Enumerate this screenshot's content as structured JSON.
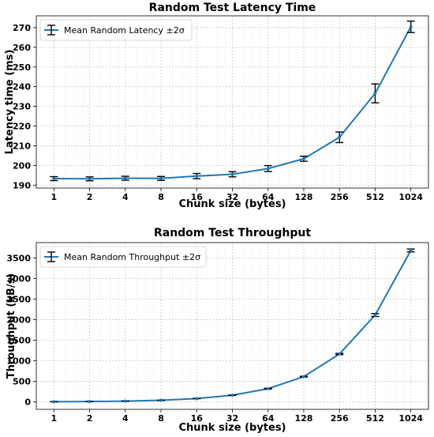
{
  "chart_data": [
    {
      "type": "line",
      "title": "Random Test Latency Time",
      "xlabel": "Chunk size (bytes)",
      "ylabel": "Latency time (ms)",
      "x_scale": "log2",
      "x": [
        1,
        2,
        4,
        8,
        16,
        32,
        64,
        128,
        256,
        512,
        1024
      ],
      "x_tick_labels": [
        "1",
        "2",
        "4",
        "8",
        "16",
        "32",
        "64",
        "128",
        "256",
        "512",
        "1024"
      ],
      "ylim": [
        188.5,
        276
      ],
      "y_ticks": [
        190,
        200,
        210,
        220,
        230,
        240,
        250,
        260,
        270
      ],
      "grid": true,
      "legend_position": "top-left",
      "color": "#1f77b4",
      "series": [
        {
          "name": "Mean Random Latency ±2σ",
          "values": [
            193.3,
            193.2,
            193.5,
            193.4,
            194.6,
            195.5,
            198.4,
            203.4,
            214.3,
            236.6,
            270.4
          ],
          "error_2sigma": [
            1.0,
            1.0,
            1.0,
            1.0,
            1.3,
            1.3,
            1.5,
            1.3,
            2.7,
            4.8,
            2.9
          ]
        }
      ]
    },
    {
      "type": "line",
      "title": "Random Test Throughput",
      "xlabel": "Chunk size (bytes)",
      "ylabel": "Throughput (kB/s)",
      "x_scale": "log2",
      "x": [
        1,
        2,
        4,
        8,
        16,
        32,
        64,
        128,
        256,
        512,
        1024
      ],
      "x_tick_labels": [
        "1",
        "2",
        "4",
        "8",
        "16",
        "32",
        "64",
        "128",
        "256",
        "512",
        "1024"
      ],
      "ylim": [
        -180,
        3870
      ],
      "y_ticks": [
        0,
        500,
        1000,
        1500,
        2000,
        2500,
        3000,
        3500
      ],
      "grid": true,
      "legend_position": "top-left",
      "color": "#1f77b4",
      "series": [
        {
          "name": "Mean Random Throughput ±2σ",
          "values": [
            5,
            10,
            20,
            40,
            82,
            163,
            322,
            614,
            1165,
            2110,
            3680
          ],
          "error_2sigma": [
            1,
            1,
            1,
            2,
            3,
            5,
            10,
            10,
            15,
            35,
            35
          ]
        }
      ]
    }
  ]
}
